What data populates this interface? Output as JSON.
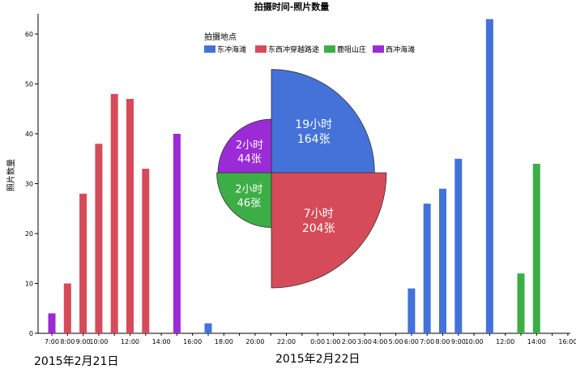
{
  "chart_data": {
    "type": "bar",
    "title": "拍摄时间-照片数量",
    "ylabel": "照片数量",
    "xlabel": "",
    "ylim": [
      0,
      65
    ],
    "yticks": [
      0,
      10,
      20,
      30,
      40,
      50,
      60
    ],
    "grid": false,
    "legend": {
      "title": "拍摄地点",
      "placement": "top-center",
      "entries": [
        {
          "name": "东冲海滩",
          "color": "#4472d9"
        },
        {
          "name": "东西冲穿越路途",
          "color": "#d64b5a"
        },
        {
          "name": "鹿咀山庄",
          "color": "#3cae45"
        },
        {
          "name": "西冲海滩",
          "color": "#9b2bd6"
        }
      ]
    },
    "categories": [
      "7:00",
      "8:00",
      "9:00",
      "10:00",
      "11:00",
      "12:00",
      "13:00",
      "14:00",
      "15:00",
      "16:00",
      "17:00",
      "18:00",
      "19:00",
      "20:00",
      "21:00",
      "22:00",
      "23:00",
      "0:00",
      "1:00",
      "2:00",
      "3:00",
      "4:00",
      "5:00",
      "6:00",
      "7:00",
      "8:00",
      "9:00",
      "10:00",
      "11:00",
      "12:00",
      "13:00",
      "14:00",
      "15:00",
      "16:00"
    ],
    "tick_labels": [
      {
        "i": 0,
        "text": "7:00"
      },
      {
        "i": 1,
        "text": "8:00"
      },
      {
        "i": 2,
        "text": "9:00"
      },
      {
        "i": 3,
        "text": "10:00"
      },
      {
        "i": 5,
        "text": "12:00"
      },
      {
        "i": 7,
        "text": "14:00"
      },
      {
        "i": 9,
        "text": "16:00"
      },
      {
        "i": 11,
        "text": "18:00"
      },
      {
        "i": 13,
        "text": "20:00"
      },
      {
        "i": 15,
        "text": "22:00"
      },
      {
        "i": 17,
        "text": "0:00"
      },
      {
        "i": 18,
        "text": "1:00"
      },
      {
        "i": 19,
        "text": "2:00"
      },
      {
        "i": 20,
        "text": "3:00"
      },
      {
        "i": 21,
        "text": "4:00"
      },
      {
        "i": 22,
        "text": "5:00"
      },
      {
        "i": 23,
        "text": "6:00"
      },
      {
        "i": 24,
        "text": "7:00"
      },
      {
        "i": 25,
        "text": "8:00"
      },
      {
        "i": 26,
        "text": "9:00"
      },
      {
        "i": 27,
        "text": "10:00"
      },
      {
        "i": 29,
        "text": "12:00"
      },
      {
        "i": 31,
        "text": "14:00"
      },
      {
        "i": 33,
        "text": "16:00"
      }
    ],
    "bars": [
      {
        "i": 0,
        "value": 4,
        "series": "西冲海滩"
      },
      {
        "i": 1,
        "value": 10,
        "series": "东西冲穿越路途"
      },
      {
        "i": 2,
        "value": 28,
        "series": "东西冲穿越路途"
      },
      {
        "i": 3,
        "value": 38,
        "series": "东西冲穿越路途"
      },
      {
        "i": 4,
        "value": 48,
        "series": "东西冲穿越路途"
      },
      {
        "i": 5,
        "value": 47,
        "series": "东西冲穿越路途"
      },
      {
        "i": 6,
        "value": 33,
        "series": "东西冲穿越路途"
      },
      {
        "i": 8,
        "value": 40,
        "series": "西冲海滩"
      },
      {
        "i": 10,
        "value": 2,
        "series": "东冲海滩"
      },
      {
        "i": 23,
        "value": 9,
        "series": "东冲海滩"
      },
      {
        "i": 24,
        "value": 26,
        "series": "东冲海滩"
      },
      {
        "i": 25,
        "value": 29,
        "series": "东冲海滩"
      },
      {
        "i": 26,
        "value": 35,
        "series": "东冲海滩"
      },
      {
        "i": 28,
        "value": 63,
        "series": "东冲海滩"
      },
      {
        "i": 30,
        "value": 12,
        "series": "鹿咀山庄"
      },
      {
        "i": 31,
        "value": 34,
        "series": "鹿咀山庄"
      }
    ],
    "date_labels": [
      "2015年2月21日",
      "2015年2月22日"
    ],
    "inset_polar": {
      "type": "pie",
      "slices": [
        {
          "series": "东冲海滩",
          "hours": 19,
          "photos": 164,
          "label_line1": "19小时",
          "label_line2": "164张"
        },
        {
          "series": "东西冲穿越路途",
          "hours": 7,
          "photos": 204,
          "label_line1": "7小时",
          "label_line2": "204张"
        },
        {
          "series": "鹿咀山庄",
          "hours": 2,
          "photos": 46,
          "label_line1": "2小时",
          "label_line2": "46张"
        },
        {
          "series": "西冲海滩",
          "hours": 2,
          "photos": 44,
          "label_line1": "2小时",
          "label_line2": "44张"
        }
      ]
    }
  }
}
